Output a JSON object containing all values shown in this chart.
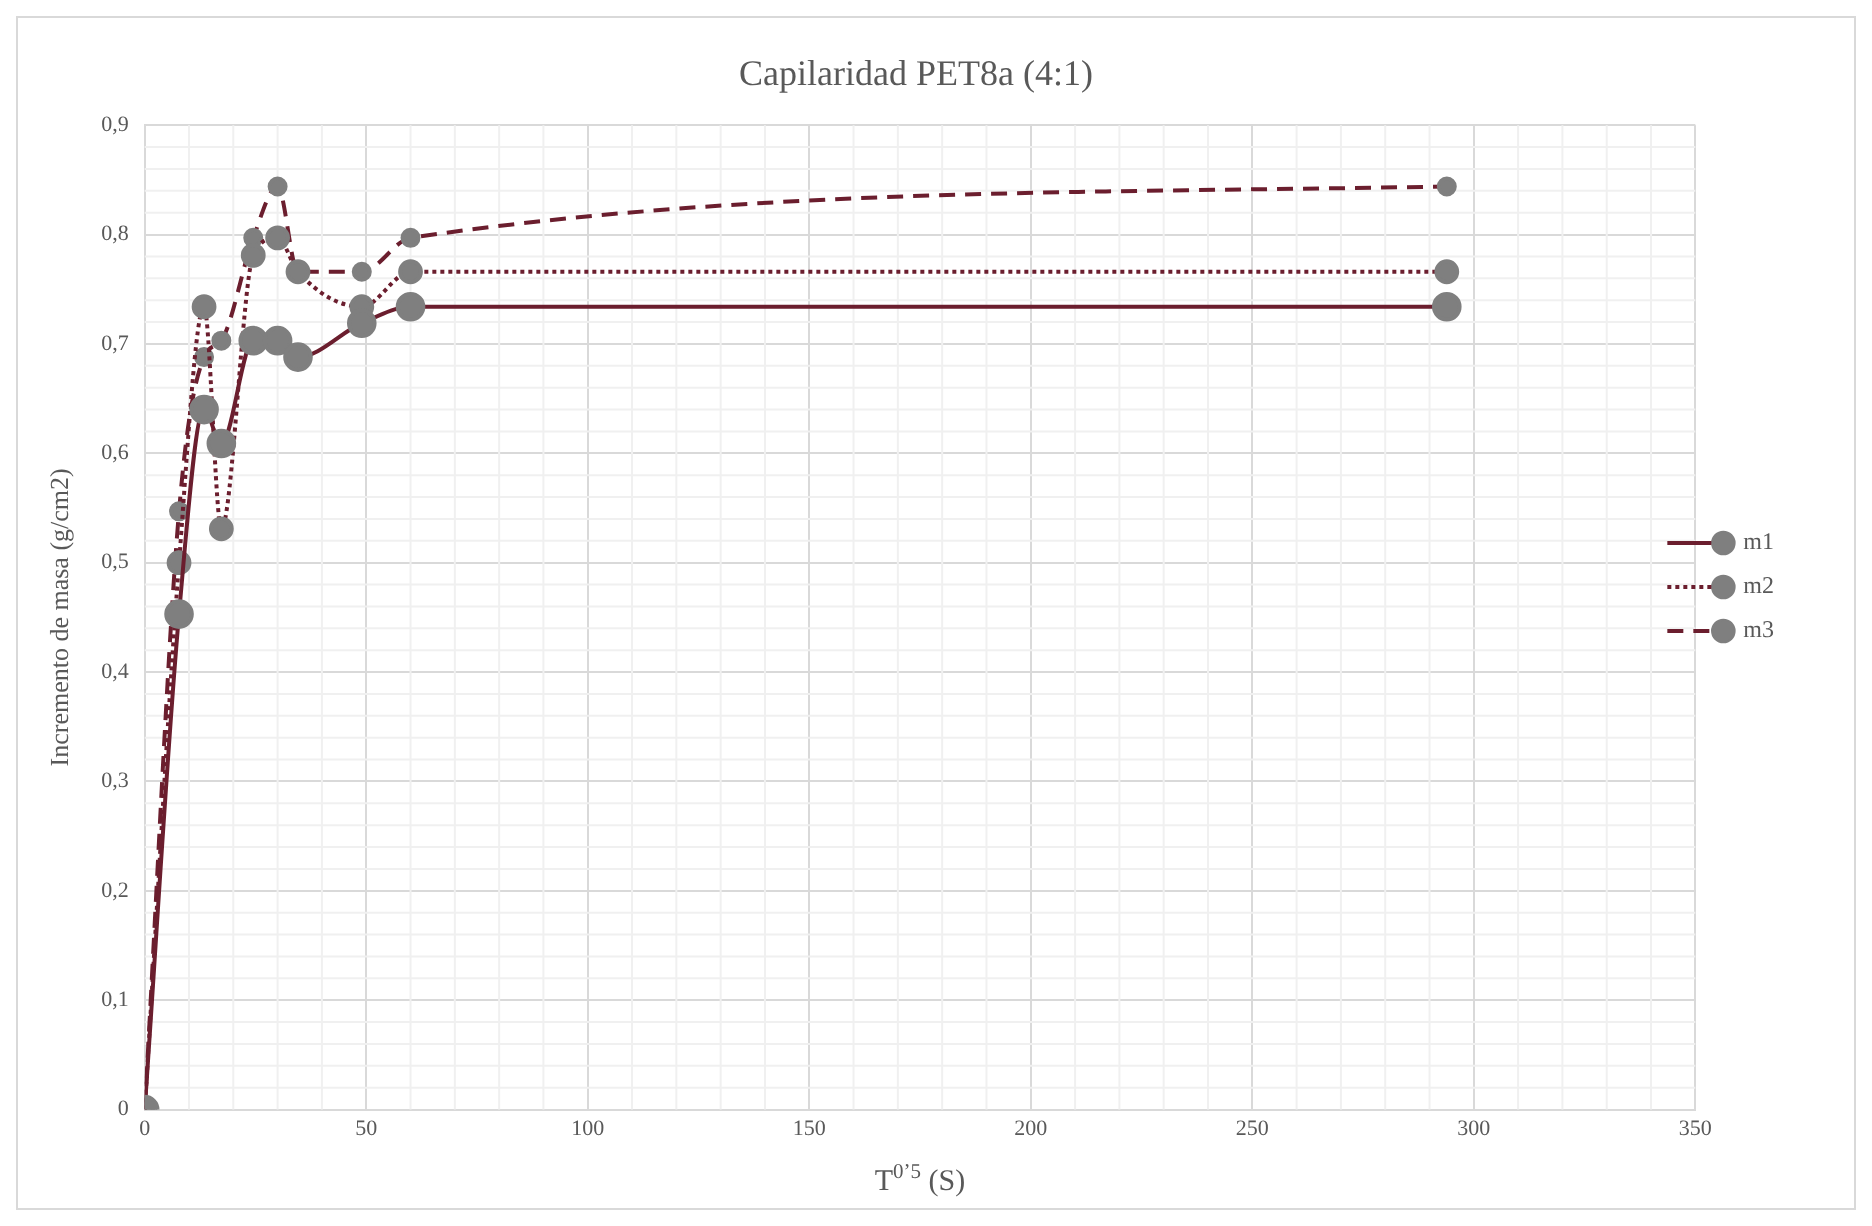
{
  "chart_data": {
    "type": "line",
    "title": "Capilaridad PET8a (4:1)",
    "xlabel": "T$^{0’5}$ (S)",
    "ylabel": "Incremento de masa (g/cm2)",
    "x": [
      0,
      7.75,
      13.4,
      17.3,
      24.5,
      30,
      34.6,
      49,
      60,
      293.9
    ],
    "series": [
      {
        "name": "m1",
        "color": "#6b1e2e",
        "line_style": "solid",
        "values": [
          0,
          0.453,
          0.64,
          0.609,
          0.703,
          0.703,
          0.688,
          0.719,
          0.734,
          0.734
        ]
      },
      {
        "name": "m2",
        "color": "#6b1e2e",
        "line_style": "dotted",
        "values": [
          0,
          0.5,
          0.734,
          0.531,
          0.781,
          0.797,
          0.766,
          0.734,
          0.766,
          0.766
        ]
      },
      {
        "name": "m3",
        "color": "#6b1e2e",
        "line_style": "dashed",
        "values": [
          0,
          0.547,
          0.688,
          0.703,
          0.797,
          0.844,
          0.766,
          0.766,
          0.797,
          0.844
        ]
      }
    ],
    "xlim": [
      0,
      350
    ],
    "xticks": [
      0,
      50,
      100,
      150,
      200,
      250,
      300,
      350
    ],
    "ylim": [
      0,
      0.9
    ],
    "yticks": [
      0,
      {
        "value": 0.1,
        "label": "0,1"
      },
      {
        "value": 0.2,
        "label": "0,2"
      },
      {
        "value": 0.3,
        "label": "0,3"
      },
      {
        "value": 0.4,
        "label": "0,4"
      },
      {
        "value": 0.5,
        "label": "0,5"
      },
      {
        "value": 0.6,
        "label": "0,6"
      },
      {
        "value": 0.7,
        "label": "0,7"
      },
      {
        "value": 0.8,
        "label": "0,8"
      },
      {
        "value": 0.9,
        "label": "0,9"
      }
    ],
    "grid": true,
    "legend": "right",
    "marker": "circle"
  }
}
